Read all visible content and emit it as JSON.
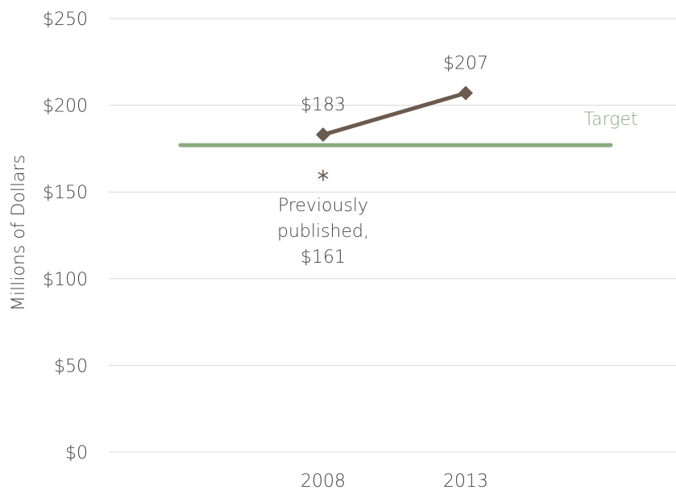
{
  "chart_data": {
    "type": "line",
    "title": "",
    "ylabel": "Millions of Dollars",
    "xlabel": "",
    "ylim": [
      0,
      250
    ],
    "y_ticks": [
      0,
      50,
      100,
      150,
      200,
      250
    ],
    "y_tick_labels": [
      "$0",
      "$50",
      "$100",
      "$150",
      "$200",
      "$250"
    ],
    "categories": [
      "2008",
      "2013"
    ],
    "grid": true,
    "series": [
      {
        "values": [
          183,
          207
        ],
        "data_labels": [
          "$183",
          "$207"
        ],
        "color": "#6b5b4e",
        "marker": "diamond"
      }
    ],
    "target": {
      "label": "Target",
      "value": 177,
      "color": "#8aab7f"
    },
    "annotation": {
      "category": "2008",
      "value": 161,
      "marker": "asterisk",
      "lines": [
        "Previously",
        "published,",
        "$161"
      ]
    }
  }
}
